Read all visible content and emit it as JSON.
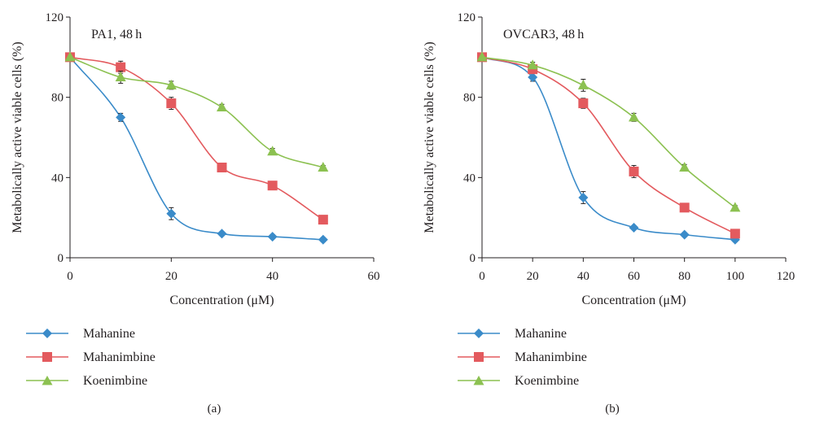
{
  "chart_data": [
    {
      "type": "line",
      "title": "PA1, 48 h",
      "xlabel": "Concentration (μM)",
      "ylabel": "Metabolically active viable cells (%)",
      "xlim": [
        0,
        60
      ],
      "ylim": [
        0,
        120
      ],
      "xticks": [
        0,
        20,
        40,
        60
      ],
      "yticks": [
        0,
        40,
        80,
        120
      ],
      "xtick_labels": [
        "0",
        "20",
        "40",
        "60"
      ],
      "ytick_labels": [
        "0",
        "40",
        "80",
        "120"
      ],
      "x": [
        0,
        10,
        20,
        30,
        40,
        50
      ],
      "caption": "(a)",
      "series": [
        {
          "name": "Mahanine",
          "marker": "diamond",
          "color": "#3a8bc9",
          "values": [
            100,
            70,
            22,
            12,
            10.5,
            9
          ],
          "errors": [
            0,
            2,
            3,
            1,
            1,
            1
          ]
        },
        {
          "name": "Mahanimbine",
          "marker": "square",
          "color": "#e35a5e",
          "values": [
            100,
            95,
            77,
            45,
            36,
            19
          ],
          "errors": [
            0,
            3,
            3,
            1.5,
            1.5,
            1
          ]
        },
        {
          "name": "Koenimbine",
          "marker": "triangle",
          "color": "#8cc151",
          "values": [
            100,
            90,
            86,
            75,
            53,
            45
          ],
          "errors": [
            0,
            3,
            2,
            1.5,
            1.5,
            1
          ]
        }
      ]
    },
    {
      "type": "line",
      "title": "OVCAR3, 48 h",
      "xlabel": "Concentration (μM)",
      "ylabel": "Metabolically active viable cells (%)",
      "xlim": [
        0,
        120
      ],
      "ylim": [
        0,
        120
      ],
      "xticks": [
        0,
        20,
        40,
        60,
        80,
        100,
        120
      ],
      "yticks": [
        0,
        40,
        80,
        120
      ],
      "xtick_labels": [
        "0",
        "20",
        "40",
        "60",
        "80",
        "100",
        "120"
      ],
      "ytick_labels": [
        "0",
        "40",
        "80",
        "120"
      ],
      "x": [
        0,
        20,
        40,
        60,
        80,
        100
      ],
      "caption": "(b)",
      "series": [
        {
          "name": "Mahanine",
          "marker": "diamond",
          "color": "#3a8bc9",
          "values": [
            100,
            90,
            30,
            15,
            11.5,
            9
          ],
          "errors": [
            0,
            2,
            3,
            1,
            1,
            1
          ]
        },
        {
          "name": "Mahanimbine",
          "marker": "square",
          "color": "#e35a5e",
          "values": [
            100,
            94,
            77,
            43,
            25,
            12
          ],
          "errors": [
            0,
            2,
            2.5,
            3,
            1,
            1
          ]
        },
        {
          "name": "Koenimbine",
          "marker": "triangle",
          "color": "#8cc151",
          "values": [
            100,
            96,
            86,
            70,
            45,
            25
          ],
          "errors": [
            0,
            1.5,
            3,
            2,
            1.5,
            1
          ]
        }
      ]
    }
  ]
}
